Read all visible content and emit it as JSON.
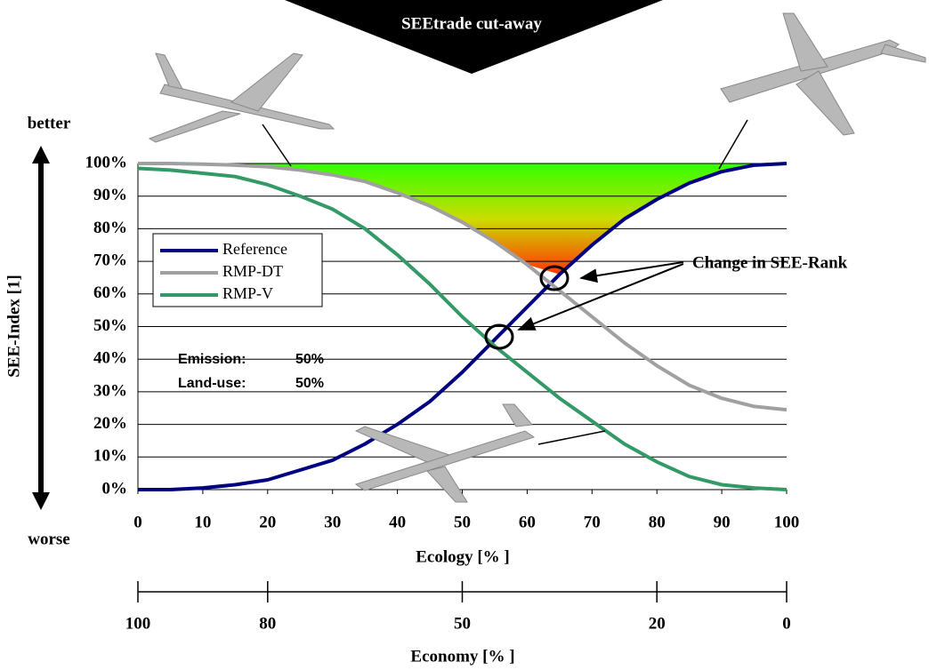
{
  "chart_data": {
    "type": "line",
    "title": "SEEtrade cut-away",
    "x_label": "Ecology [% ]",
    "y_label": "SEE-Index [1]",
    "x2_label": "Economy [% ]",
    "top_label": "better",
    "bottom_label": "worse",
    "annotation": "Change in SEE-Rank",
    "weights": [
      {
        "name": "Emission:",
        "value": "50%"
      },
      {
        "name": "Land-use:",
        "value": "50%"
      }
    ],
    "x": [
      0,
      5,
      10,
      15,
      20,
      25,
      30,
      35,
      40,
      45,
      50,
      55,
      60,
      65,
      70,
      75,
      80,
      85,
      90,
      95,
      100
    ],
    "series": [
      {
        "name": "Reference",
        "color": "#000080",
        "values": [
          0,
          0,
          0.5,
          1.5,
          3,
          6,
          9,
          14,
          20,
          27,
          36,
          46,
          56,
          66,
          75,
          83,
          89,
          94,
          97.5,
          99.5,
          100
        ]
      },
      {
        "name": "RMP-DT",
        "color": "#a0a0a0",
        "values": [
          100,
          100,
          99.8,
          99.5,
          99,
          98,
          96.5,
          94.5,
          91,
          87,
          82,
          76,
          69,
          61,
          53,
          45,
          38,
          32,
          28,
          25.5,
          24.5
        ]
      },
      {
        "name": "RMP-V",
        "color": "#339966",
        "values": [
          98.5,
          98,
          97,
          96,
          93.5,
          90,
          86,
          80,
          72,
          63,
          53,
          44,
          36,
          28,
          21,
          14,
          8.5,
          4,
          1.5,
          0.5,
          0
        ]
      }
    ],
    "xlim": [
      0,
      100
    ],
    "xticks": [
      0,
      10,
      20,
      30,
      40,
      50,
      60,
      70,
      80,
      90,
      100
    ],
    "x2lim": [
      100,
      0
    ],
    "x2ticks": [
      100,
      80,
      50,
      20,
      0
    ],
    "ylim": [
      0,
      100
    ],
    "yticks": [
      {
        "value": 0,
        "label": "0%"
      },
      {
        "value": 10,
        "label": "10%"
      },
      {
        "value": 20,
        "label": "20%"
      },
      {
        "value": 30,
        "label": "30%"
      },
      {
        "value": 40,
        "label": "40%"
      },
      {
        "value": 50,
        "label": "50%"
      },
      {
        "value": 60,
        "label": "60%"
      },
      {
        "value": 70,
        "label": "70%"
      },
      {
        "value": 80,
        "label": "80%"
      },
      {
        "value": 90,
        "label": "90%"
      },
      {
        "value": 100,
        "label": "100%"
      }
    ],
    "grid": true
  }
}
